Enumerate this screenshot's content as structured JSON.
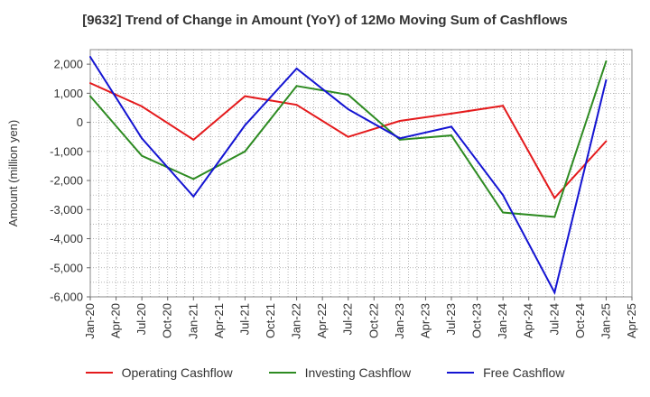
{
  "chart_data": {
    "type": "line",
    "title": "[9632]  Trend of Change in Amount (YoY) of 12Mo Moving Sum of Cashflows",
    "xlabel": "",
    "ylabel": "Amount (million yen)",
    "ylim": [
      -6000,
      2500
    ],
    "yticks": [
      2000,
      1000,
      0,
      -1000,
      -2000,
      -3000,
      -4000,
      -5000,
      -6000
    ],
    "ytick_labels": [
      "2,000",
      "1,000",
      "0",
      "-1,000",
      "-2,000",
      "-3,000",
      "-4,000",
      "-5,000",
      "-6,000"
    ],
    "x": [
      "Jan-20",
      "Apr-20",
      "Jul-20",
      "Oct-20",
      "Jan-21",
      "Apr-21",
      "Jul-21",
      "Oct-21",
      "Jan-22",
      "Apr-22",
      "Jul-22",
      "Oct-22",
      "Jan-23",
      "Apr-23",
      "Jul-23",
      "Oct-23",
      "Jan-24",
      "Apr-24",
      "Jul-24",
      "Oct-24",
      "Jan-25",
      "Apr-25"
    ],
    "grid": true,
    "legend_position": "bottom",
    "series": [
      {
        "name": "Operating Cashflow",
        "color": "#e41a1c",
        "points": [
          {
            "x": "Jan-20",
            "y": 1350
          },
          {
            "x": "Jul-20",
            "y": 550
          },
          {
            "x": "Jan-21",
            "y": -600
          },
          {
            "x": "Jul-21",
            "y": 900
          },
          {
            "x": "Jan-22",
            "y": 600
          },
          {
            "x": "Jul-22",
            "y": -500
          },
          {
            "x": "Jan-23",
            "y": 50
          },
          {
            "x": "Jul-23",
            "y": 300
          },
          {
            "x": "Jan-24",
            "y": 570
          },
          {
            "x": "Jul-24",
            "y": -2600
          },
          {
            "x": "Jan-25",
            "y": -650
          }
        ]
      },
      {
        "name": "Investing Cashflow",
        "color": "#2e8b22",
        "points": [
          {
            "x": "Jan-20",
            "y": 900
          },
          {
            "x": "Jul-20",
            "y": -1150
          },
          {
            "x": "Jan-21",
            "y": -1950
          },
          {
            "x": "Jul-21",
            "y": -1000
          },
          {
            "x": "Jan-22",
            "y": 1250
          },
          {
            "x": "Jul-22",
            "y": 950
          },
          {
            "x": "Jan-23",
            "y": -600
          },
          {
            "x": "Jul-23",
            "y": -450
          },
          {
            "x": "Jan-24",
            "y": -3100
          },
          {
            "x": "Jul-24",
            "y": -3250
          },
          {
            "x": "Jan-25",
            "y": 2100
          }
        ]
      },
      {
        "name": "Free Cashflow",
        "color": "#1414d2",
        "points": [
          {
            "x": "Jan-20",
            "y": 2250
          },
          {
            "x": "Jul-20",
            "y": -550
          },
          {
            "x": "Jan-21",
            "y": -2550
          },
          {
            "x": "Jul-21",
            "y": -100
          },
          {
            "x": "Jan-22",
            "y": 1850
          },
          {
            "x": "Jul-22",
            "y": 450
          },
          {
            "x": "Jan-23",
            "y": -550
          },
          {
            "x": "Jul-23",
            "y": -150
          },
          {
            "x": "Jan-24",
            "y": -2500
          },
          {
            "x": "Jul-24",
            "y": -5850
          },
          {
            "x": "Jan-25",
            "y": 1450
          }
        ]
      }
    ]
  }
}
